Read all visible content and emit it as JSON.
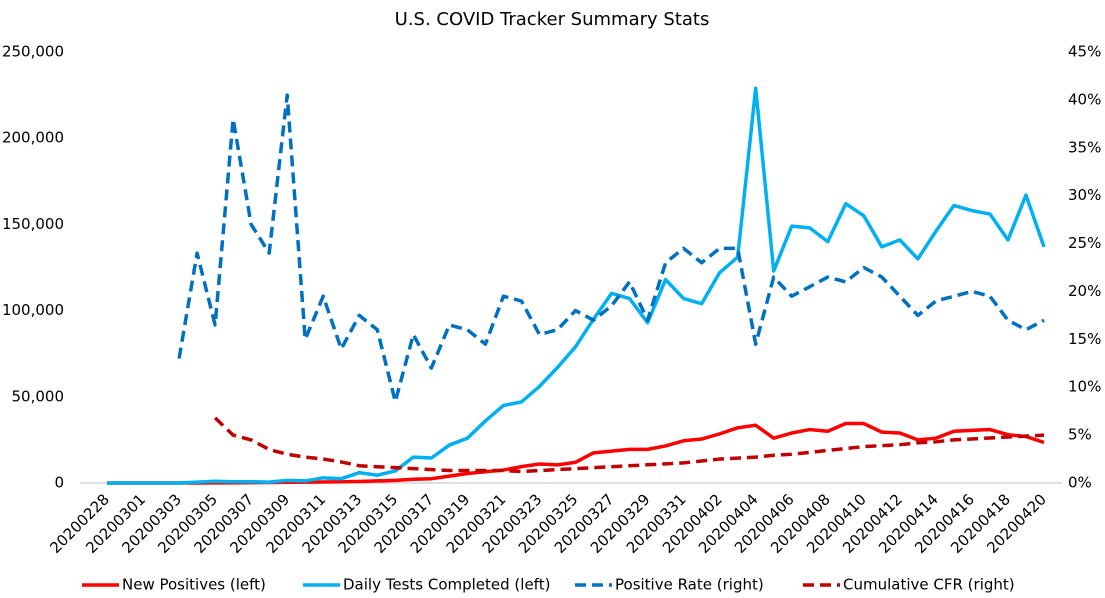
{
  "chart_data": {
    "type": "line",
    "title": "U.S. COVID Tracker Summary Stats",
    "categories": [
      "20200228",
      null,
      "20200301",
      null,
      "20200303",
      null,
      "20200305",
      null,
      "20200307",
      null,
      "20200309",
      null,
      "20200311",
      null,
      "20200313",
      null,
      "20200315",
      null,
      "20200317",
      null,
      "20200319",
      null,
      "20200321",
      null,
      "20200323",
      null,
      "20200325",
      null,
      "20200327",
      null,
      "20200329",
      null,
      "20200331",
      null,
      "20200402",
      null,
      "20200404",
      null,
      "20200406",
      null,
      "20200408",
      null,
      "20200410",
      null,
      "20200412",
      null,
      "20200414",
      null,
      "20200416",
      null,
      "20200418",
      null,
      "20200420"
    ],
    "series": [
      {
        "name": "New Positives (left)",
        "color": "#ff0000",
        "style": "solid",
        "axis": "y",
        "values": [
          0,
          0,
          0,
          0,
          0,
          0,
          100,
          100,
          200,
          300,
          400,
          500,
          600,
          700,
          900,
          1200,
          1500,
          2200,
          2500,
          4000,
          5500,
          6500,
          7500,
          9500,
          11000,
          10500,
          12000,
          17500,
          18500,
          19500,
          19500,
          21500,
          24500,
          25500,
          28500,
          32000,
          33500,
          26000,
          29000,
          31000,
          30000,
          34500,
          34500,
          29500,
          29000,
          25000,
          26000,
          30000,
          30500,
          31000,
          28000,
          27000,
          23500
        ]
      },
      {
        "name": "Daily Tests Completed (left)",
        "color": "#00b0f0",
        "style": "solid",
        "axis": "y",
        "values": [
          0,
          0,
          0,
          0,
          0,
          500,
          1000,
          700,
          800,
          500,
          1500,
          1200,
          3000,
          2500,
          6000,
          4500,
          7000,
          15000,
          14500,
          22000,
          26000,
          36000,
          45000,
          47000,
          56000,
          67000,
          79000,
          95000,
          110000,
          107000,
          93000,
          118000,
          107000,
          104000,
          122000,
          131000,
          229000,
          123000,
          149000,
          148000,
          140000,
          162000,
          155000,
          137000,
          141000,
          130000,
          146000,
          161000,
          158000,
          156000,
          141000,
          167000,
          137000
        ]
      },
      {
        "name": "Positive Rate (right)",
        "color": "#0070c0",
        "style": "dashed",
        "axis": "y2",
        "values": [
          null,
          null,
          null,
          null,
          13,
          24,
          16.5,
          38,
          27,
          24,
          40.5,
          15,
          19.5,
          14,
          17.5,
          16,
          8.5,
          15.5,
          12,
          16.5,
          16,
          14.5,
          19.5,
          19,
          15.5,
          16,
          18,
          17,
          18.5,
          21,
          17,
          23,
          24.5,
          23,
          24.5,
          24.5,
          14.5,
          21.5,
          19.5,
          20.5,
          21.5,
          21,
          22.5,
          21.5,
          19.5,
          17.5,
          19,
          19.5,
          20,
          19.5,
          17,
          16,
          17
        ]
      },
      {
        "name": "Cumulative CFR (right)",
        "color": "#c00000",
        "style": "dashed",
        "axis": "y2",
        "values": [
          null,
          null,
          null,
          null,
          null,
          null,
          6.8,
          5,
          4.5,
          3.5,
          3,
          2.7,
          2.5,
          2.2,
          1.8,
          1.7,
          1.6,
          1.5,
          1.4,
          1.3,
          1.3,
          1.3,
          1.3,
          1.2,
          1.3,
          1.4,
          1.5,
          1.6,
          1.7,
          1.8,
          1.9,
          2,
          2.1,
          2.3,
          2.5,
          2.6,
          2.7,
          2.9,
          3,
          3.2,
          3.4,
          3.6,
          3.8,
          3.9,
          4,
          4.2,
          4.3,
          4.5,
          4.6,
          4.7,
          4.8,
          4.9,
          5
        ]
      }
    ],
    "ylim": [
      0,
      250000
    ],
    "yticks": [
      0,
      {
        "value": 50000,
        "label": "50,000"
      },
      {
        "value": 100000,
        "label": "100,000"
      },
      {
        "value": 150000,
        "label": "150,000"
      },
      {
        "value": 200000,
        "label": "200,000"
      },
      {
        "value": 250000,
        "label": "250,000"
      }
    ],
    "y2lim": [
      0,
      45
    ],
    "y2ticks": [
      {
        "value": 0,
        "label": "0%"
      },
      {
        "value": 5,
        "label": "5%"
      },
      {
        "value": 10,
        "label": "10%"
      },
      {
        "value": 15,
        "label": "15%"
      },
      {
        "value": 20,
        "label": "20%"
      },
      {
        "value": 25,
        "label": "25%"
      },
      {
        "value": 30,
        "label": "30%"
      },
      {
        "value": 35,
        "label": "35%"
      },
      {
        "value": 40,
        "label": "40%"
      },
      {
        "value": 45,
        "label": "45%"
      }
    ],
    "grid": false,
    "legend": "bottom"
  }
}
